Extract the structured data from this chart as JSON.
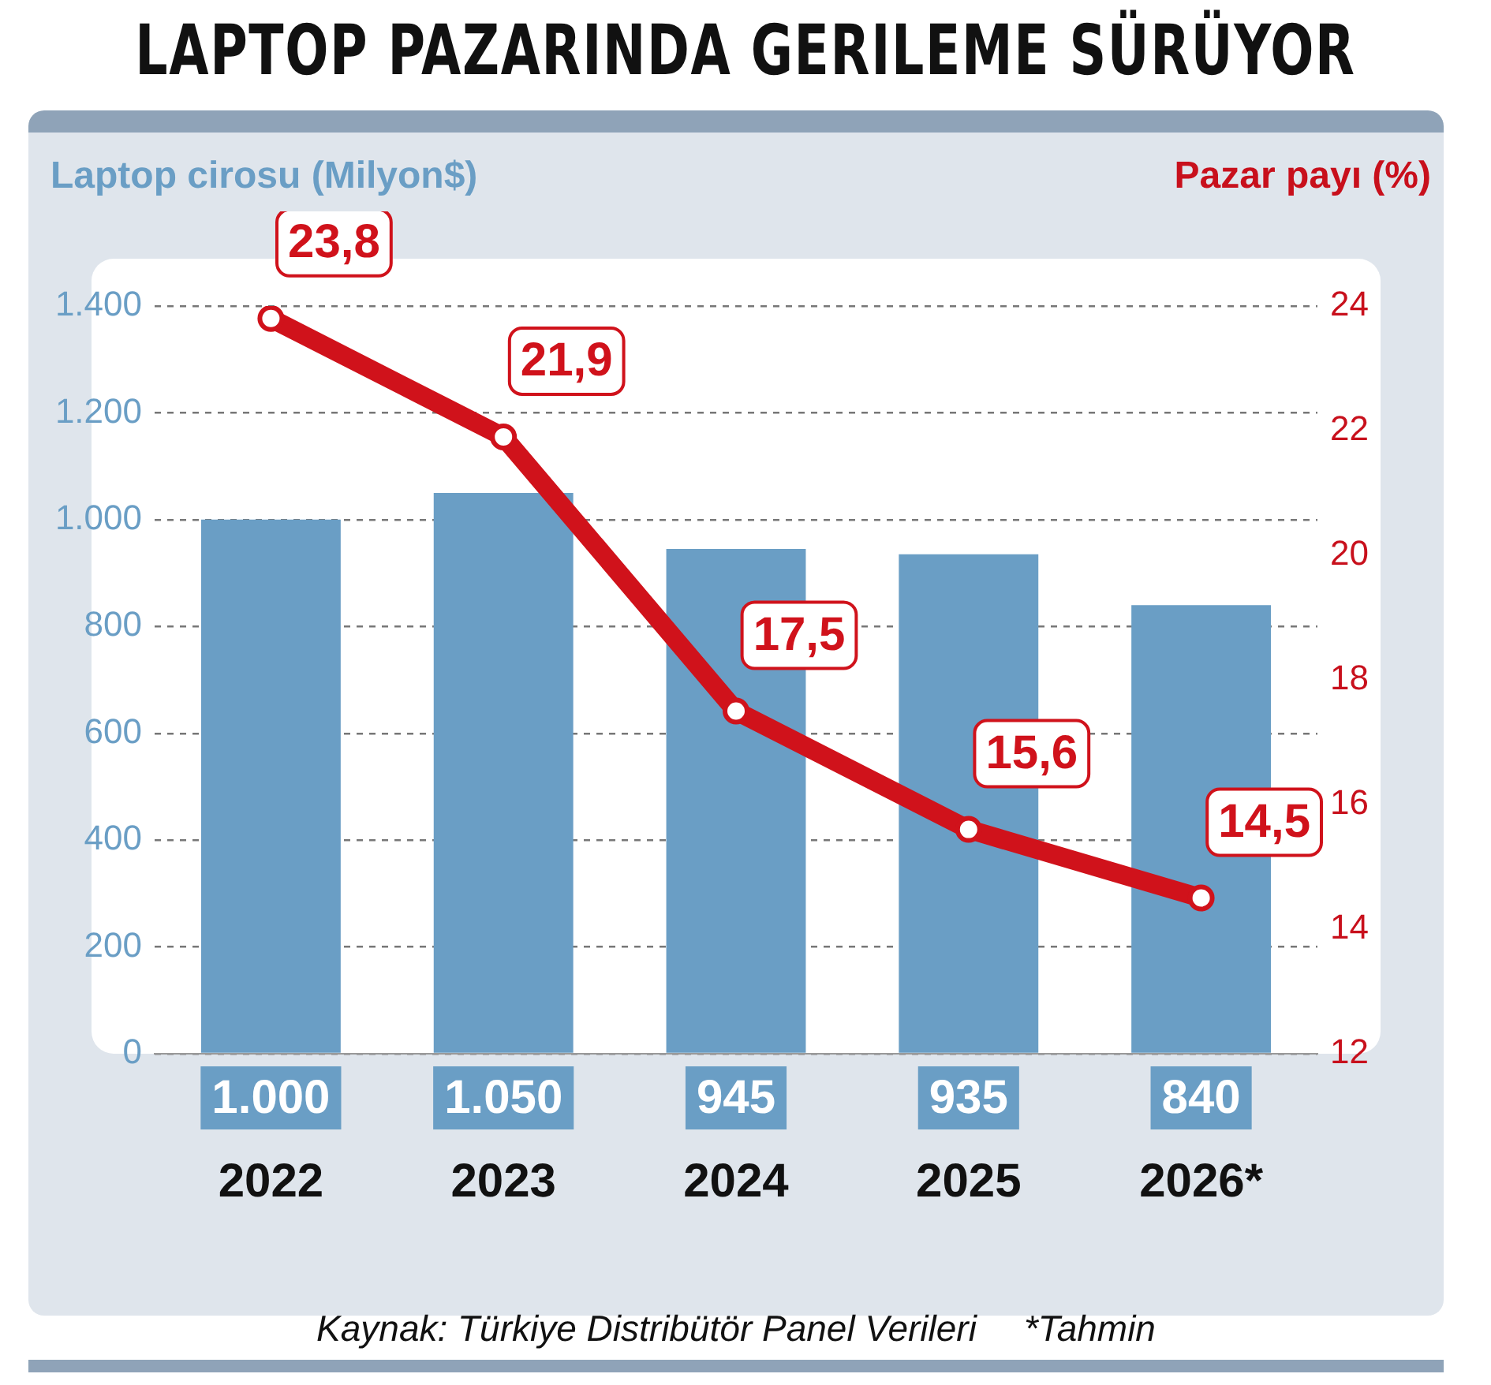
{
  "chart_data": {
    "type": "bar",
    "title": "LAPTOP PAZARINDA GERILEME SÜRÜYOR",
    "ylabel": "Laptop cirosu (Milyon$)",
    "y2label": "Pazar payı (%)",
    "categories": [
      "2022",
      "2023",
      "2024",
      "2025",
      "2026*"
    ],
    "series": [
      {
        "color": "#6a9ec5",
        "values": [
          1000,
          1050,
          945,
          935,
          840
        ],
        "value_labels": [
          "1.000",
          "1.050",
          "945",
          "935",
          "840"
        ]
      },
      {
        "type": "line",
        "axis": "y2",
        "color": "#d0121b",
        "marker": "circle",
        "values": [
          23.8,
          21.9,
          17.5,
          15.6,
          14.5
        ],
        "value_labels": [
          "23,8",
          "21,9",
          "17,5",
          "15,6",
          "14,5"
        ]
      }
    ],
    "ylim": [
      0,
      1400
    ],
    "yticks": [
      0,
      200,
      400,
      600,
      800,
      {
        "value": 1000,
        "label": "1.000"
      },
      {
        "value": 1200,
        "label": "1.200"
      },
      {
        "value": 1400,
        "label": "1.400"
      }
    ],
    "y2lim": [
      12,
      24
    ],
    "y2ticks": [
      12,
      14,
      16,
      18,
      20,
      22,
      24
    ],
    "grid": "y",
    "annotations": [
      "Kaynak: Türkiye Distribütör Panel Verileri",
      "*Tahmin"
    ]
  }
}
